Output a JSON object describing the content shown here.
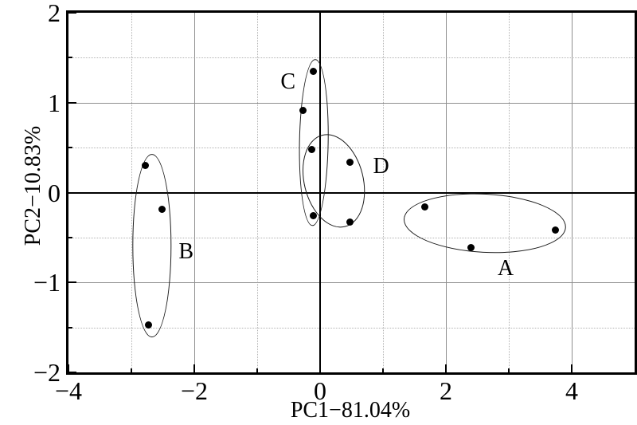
{
  "chart_data": {
    "type": "scatter",
    "title": "",
    "description": "PCA score plot with four clusters circled by ellipses",
    "x_axis": {
      "label": "PC1−81.04%",
      "range": [
        -4,
        5
      ],
      "major_ticks": [
        -4,
        -2,
        0,
        2,
        4
      ],
      "major_tick_labels": [
        "−4",
        "−2",
        "0",
        "2",
        "4"
      ],
      "minor_ticks": [
        -3,
        -1,
        1,
        3
      ]
    },
    "y_axis": {
      "label": "PC2−10.83%",
      "range": [
        -2,
        2
      ],
      "major_ticks": [
        2,
        1,
        0,
        -1,
        -2
      ],
      "major_tick_labels": [
        "2",
        "1",
        "0",
        "−1",
        "−2"
      ],
      "minor_ticks": [
        1.5,
        0.5,
        -0.5,
        -1.5
      ]
    },
    "zero_lines": true,
    "grid": {
      "major_style": "solid",
      "minor_style": "dotted"
    },
    "clusters": [
      {
        "name": "A",
        "label_pos": {
          "x": 2.95,
          "y": -0.85
        },
        "ellipse": {
          "cx": 2.62,
          "cy": -0.34,
          "rx": 1.28,
          "ry": 0.32,
          "rot_deg": 3
        },
        "points": [
          {
            "x": 1.67,
            "y": -0.16
          },
          {
            "x": 2.4,
            "y": -0.61
          },
          {
            "x": 3.74,
            "y": -0.42
          }
        ]
      },
      {
        "name": "B",
        "label_pos": {
          "x": -2.13,
          "y": -0.66
        },
        "ellipse": {
          "cx": -2.67,
          "cy": -0.59,
          "rx": 0.3,
          "ry": 1.01,
          "rot_deg": 0
        },
        "points": [
          {
            "x": -2.78,
            "y": 0.3
          },
          {
            "x": -2.51,
            "y": -0.19
          },
          {
            "x": -2.73,
            "y": -1.47
          }
        ]
      },
      {
        "name": "C",
        "label_pos": {
          "x": -0.51,
          "y": 1.23
        },
        "ellipse": {
          "cx": -0.1,
          "cy": 0.55,
          "rx": 0.22,
          "ry": 0.92,
          "rot_deg": 1
        },
        "points": [
          {
            "x": -0.11,
            "y": 1.35
          },
          {
            "x": -0.27,
            "y": 0.91
          },
          {
            "x": -0.11,
            "y": -0.26
          }
        ]
      },
      {
        "name": "D",
        "label_pos": {
          "x": 0.97,
          "y": 0.29
        },
        "ellipse": {
          "cx": 0.21,
          "cy": 0.13,
          "rx": 0.46,
          "ry": 0.52,
          "rot_deg": -14
        },
        "points": [
          {
            "x": -0.13,
            "y": 0.48
          },
          {
            "x": 0.48,
            "y": 0.34
          },
          {
            "x": 0.47,
            "y": -0.33
          }
        ]
      }
    ],
    "style": {
      "background": "#ffffff",
      "point_color": "#000000",
      "ellipse_color": "#1a1a1a",
      "grid_major_color": "#8f8f8f",
      "grid_minor_color": "#b3b3b3",
      "axis_color": "#000000"
    }
  }
}
